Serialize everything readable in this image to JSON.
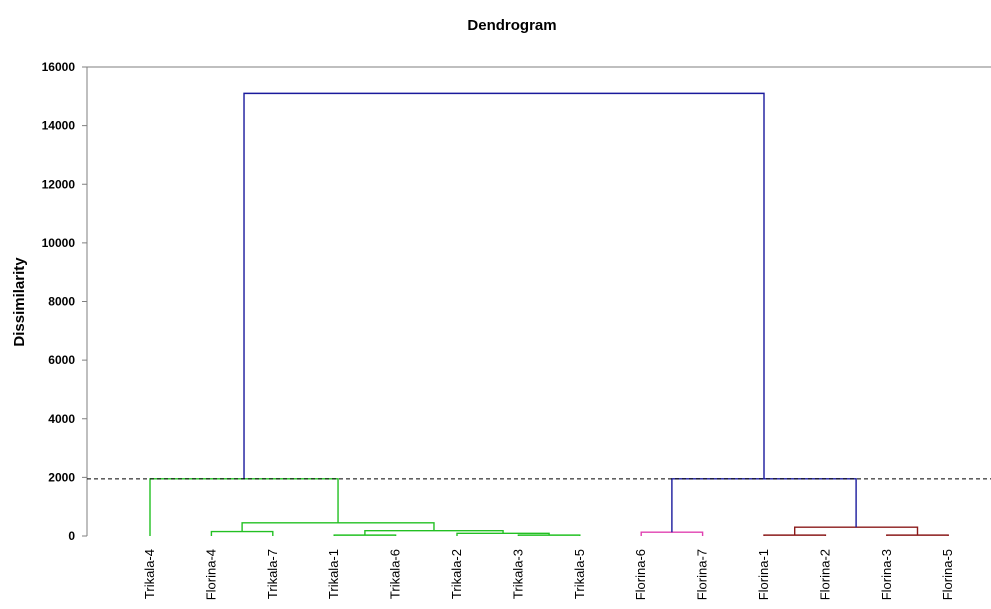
{
  "chart_data": {
    "type": "dendrogram",
    "title": "Dendrogram",
    "xlabel": "",
    "ylabel": "Dissimilarity",
    "ylim": [
      0,
      16000
    ],
    "yticks": [
      0,
      2000,
      4000,
      6000,
      8000,
      10000,
      12000,
      14000,
      16000
    ],
    "grid": false,
    "cut_line": 1950,
    "leaves": [
      "Trikala-4",
      "Florina-4",
      "Trikala-7",
      "Trikala-1",
      "Trikala-6",
      "Trikala-2",
      "Trikala-3",
      "Trikala-5",
      "Florina-6",
      "Florina-7",
      "Florina-1",
      "Florina-2",
      "Florina-3",
      "Florina-5"
    ],
    "colors": {
      "cluster_green": "#22c022",
      "cluster_magenta": "#e040b0",
      "cluster_darkred": "#8b1a1a",
      "top": "#1a1a9c",
      "axis": "#7f7f7f",
      "cut_line": "#000000"
    },
    "merges": [
      {
        "a": "Trikala-3",
        "b": "Trikala-5",
        "height": 30,
        "color": "cluster_green"
      },
      {
        "a": "Trikala-2",
        "b": "Trikala-3+Trikala-5",
        "height": 90,
        "color": "cluster_green"
      },
      {
        "a": "Trikala-1",
        "b": "Trikala-6",
        "height": 30,
        "color": "cluster_green"
      },
      {
        "a": "Trikala-1+Trikala-6",
        "b": "Trikala-2+Trikala-3+Trikala-5",
        "height": 180,
        "color": "cluster_green"
      },
      {
        "a": "Florina-4",
        "b": "Trikala-7",
        "height": 150,
        "color": "cluster_green"
      },
      {
        "a": "Florina-4+Trikala-7",
        "b": "Trikala-1+Trikala-6+Trikala-2+Trikala-3+Trikala-5",
        "height": 450,
        "color": "cluster_green"
      },
      {
        "a": "Trikala-4",
        "b": "Florina-4+Trikala-7+Trikala-1+Trikala-6+Trikala-2+Trikala-3+Trikala-5",
        "height": 1950,
        "color": "cluster_green"
      },
      {
        "a": "Florina-6",
        "b": "Florina-7",
        "height": 130,
        "color": "cluster_magenta"
      },
      {
        "a": "Florina-1",
        "b": "Florina-2",
        "height": 30,
        "color": "cluster_darkred"
      },
      {
        "a": "Florina-3",
        "b": "Florina-5",
        "height": 30,
        "color": "cluster_darkred"
      },
      {
        "a": "Florina-1+Florina-2",
        "b": "Florina-3+Florina-5",
        "height": 300,
        "color": "cluster_darkred"
      },
      {
        "a": "Florina-6+Florina-7",
        "b": "Florina-1+Florina-2+Florina-3+Florina-5",
        "height": 1950,
        "color": "top"
      },
      {
        "a": "Trikala-4+Florina-4+Trikala-7+Trikala-1+Trikala-6+Trikala-2+Trikala-3+Trikala-5",
        "b": "Florina-6+Florina-7+Florina-1+Florina-2+Florina-3+Florina-5",
        "height": 15100,
        "color": "top"
      }
    ]
  }
}
